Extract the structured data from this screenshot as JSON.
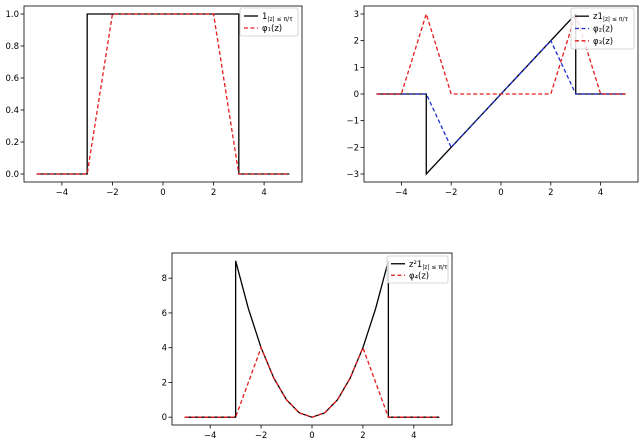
{
  "chart_data": [
    {
      "type": "line",
      "xlim": [
        -5.5,
        5.5
      ],
      "ylim": [
        -0.05,
        1.05
      ],
      "xticks": [
        -4,
        -2,
        0,
        2,
        4
      ],
      "xtick_labels": [
        "−4",
        "−2",
        "0",
        "2",
        "4"
      ],
      "yticks": [
        0,
        0.2,
        0.4,
        0.6,
        0.8,
        1.0
      ],
      "ytick_labels": [
        "0.0",
        "0.2",
        "0.4",
        "0.6",
        "0.8",
        "1.0"
      ],
      "legend_position": "top-right",
      "series": [
        {
          "name": "1",
          "name_sub": "|z| ≤ π/τ",
          "color": "#000000",
          "dash": "solid",
          "x": [
            -5,
            -3,
            -3,
            3,
            3,
            5
          ],
          "y": [
            0,
            0,
            1,
            1,
            0,
            0
          ]
        },
        {
          "name": "φ₁(z)",
          "name_sub": "",
          "color": "#e41a1c",
          "dash": "dashed",
          "x": [
            -5,
            -3,
            -2,
            2,
            3,
            5
          ],
          "y": [
            0,
            0,
            1,
            1,
            0,
            0
          ]
        }
      ]
    },
    {
      "type": "line",
      "xlim": [
        -5.5,
        5.5
      ],
      "ylim": [
        -3.3,
        3.3
      ],
      "xticks": [
        -4,
        -2,
        0,
        2,
        4
      ],
      "xtick_labels": [
        "−4",
        "−2",
        "0",
        "2",
        "4"
      ],
      "yticks": [
        -3,
        -2,
        -1,
        0,
        1,
        2,
        3
      ],
      "ytick_labels": [
        "−3",
        "−2",
        "−1",
        "0",
        "1",
        "2",
        "3"
      ],
      "legend_position": "top-right",
      "series": [
        {
          "name": "z1",
          "name_sub": "|z| ≤ π/τ",
          "color": "#000000",
          "dash": "solid",
          "x": [
            -5,
            -3,
            -3,
            3,
            3,
            5
          ],
          "y": [
            0,
            0,
            -3,
            3,
            0,
            0
          ]
        },
        {
          "name": "φ₂(z)",
          "name_sub": "",
          "color": "#1f2fd6",
          "dash": "dashed",
          "x": [
            -5,
            -3,
            -2,
            2,
            3,
            5
          ],
          "y": [
            0,
            0,
            -2,
            2,
            0,
            0
          ]
        },
        {
          "name": "φ₃(z)",
          "name_sub": "",
          "color": "#e41a1c",
          "dash": "dashed",
          "x": [
            -5,
            -4,
            -3,
            -2,
            2,
            3,
            4,
            5
          ],
          "y": [
            0,
            0,
            3,
            0,
            0,
            3,
            0,
            0
          ]
        }
      ]
    },
    {
      "type": "line",
      "xlim": [
        -5.5,
        5.5
      ],
      "ylim": [
        -0.45,
        9.45
      ],
      "xticks": [
        -4,
        -2,
        0,
        2,
        4
      ],
      "xtick_labels": [
        "−4",
        "−2",
        "0",
        "2",
        "4"
      ],
      "yticks": [
        0,
        2,
        4,
        6,
        8
      ],
      "ytick_labels": [
        "0",
        "2",
        "4",
        "6",
        "8"
      ],
      "legend_position": "top-right",
      "series": [
        {
          "name": "z²1",
          "name_sub": "|z| ≤ π/τ",
          "color": "#000000",
          "dash": "solid",
          "x": [
            -5,
            -3,
            -3,
            -2.5,
            -2,
            -1.5,
            -1,
            -0.5,
            0,
            0.5,
            1,
            1.5,
            2,
            2.5,
            3,
            3,
            5
          ],
          "y": [
            0,
            0,
            9,
            6.25,
            4,
            2.25,
            1,
            0.25,
            0,
            0.25,
            1,
            2.25,
            4,
            6.25,
            9,
            0,
            0
          ]
        },
        {
          "name": "φ₄(z)",
          "name_sub": "",
          "color": "#e41a1c",
          "dash": "dashed",
          "x": [
            -5,
            -3,
            -2,
            -1.5,
            -1,
            -0.5,
            0,
            0.5,
            1,
            1.5,
            2,
            3,
            5
          ],
          "y": [
            0,
            0,
            4,
            2.25,
            1,
            0.25,
            0,
            0.25,
            1,
            2.25,
            4,
            0,
            0
          ]
        }
      ]
    }
  ]
}
